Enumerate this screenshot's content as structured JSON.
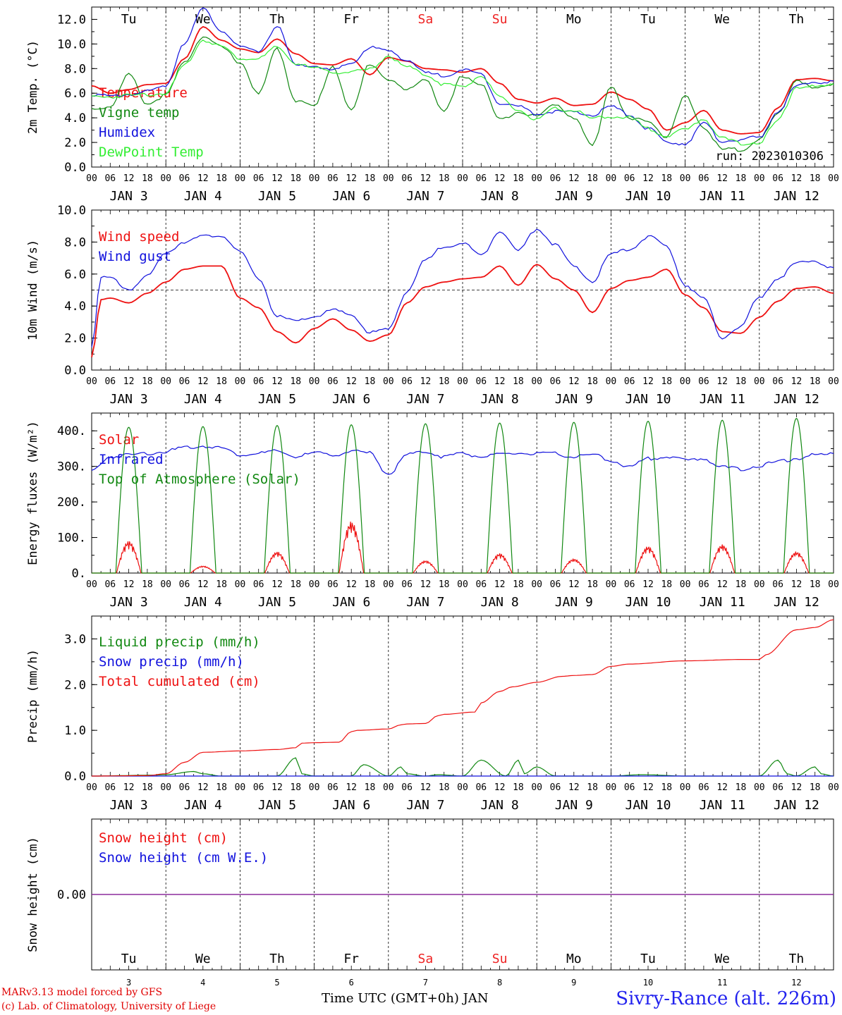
{
  "footer": {
    "credit_line1": "MARv3.13 model forced by GFS",
    "credit_line2": "(c) Lab. of Climatology, University of Liege",
    "time_axis_label": "Time UTC (GMT+0h) JAN",
    "station": "Sivry-Rance (alt. 226m)"
  },
  "run_label": "run: 2023010306",
  "colors": {
    "red": "#ee1111",
    "green": "#118811",
    "blue": "#1111dd",
    "lightgreen": "#33ee33",
    "purple": "#882299",
    "weekend": "#ee2222"
  },
  "day_names": [
    "Tu",
    "We",
    "Th",
    "Fr",
    "Sa",
    "Su",
    "Mo",
    "Tu",
    "We",
    "Th"
  ],
  "weekend_days": [
    "Sa",
    "Su"
  ],
  "dates": [
    "JAN 3",
    "JAN 4",
    "JAN 5",
    "JAN 6",
    "JAN 7",
    "JAN 8",
    "JAN 9",
    "JAN 10",
    "JAN 11",
    "JAN 12"
  ],
  "date_numbers": [
    "3",
    "4",
    "5",
    "6",
    "7",
    "8",
    "9",
    "10",
    "11",
    "12"
  ],
  "hour_labels": [
    "00",
    "06",
    "12",
    "18"
  ],
  "final_hour_label": "00",
  "chart_data": [
    {
      "type": "line",
      "ylabel": "2m Temp. (°C)",
      "ylim": [
        0,
        13.0
      ],
      "yticks": [
        "0.0",
        "2.0",
        "4.0",
        "6.0",
        "8.0",
        "10.0",
        "12.0"
      ],
      "x_unit": "hours since JAN 3 00 UTC",
      "xlim": [
        0,
        240
      ],
      "legend": "top-left",
      "series": [
        {
          "name": "Temperature",
          "color": "red",
          "x": [
            0,
            6,
            12,
            18,
            24,
            30,
            36,
            42,
            48,
            54,
            60,
            66,
            72,
            78,
            84,
            90,
            96,
            102,
            108,
            114,
            120,
            126,
            132,
            138,
            144,
            150,
            156,
            162,
            168,
            174,
            180,
            186,
            192,
            198,
            204,
            210,
            216,
            222,
            228,
            234,
            240
          ],
          "y": [
            6.6,
            6.0,
            6.3,
            6.7,
            6.8,
            8.8,
            11.4,
            10.3,
            9.6,
            9.3,
            10.4,
            9.2,
            8.4,
            8.3,
            8.8,
            7.5,
            8.9,
            8.6,
            8.0,
            7.9,
            7.7,
            8.0,
            6.8,
            5.5,
            5.2,
            5.6,
            5.0,
            5.1,
            6.1,
            5.5,
            4.7,
            3.0,
            3.6,
            4.6,
            3.0,
            2.7,
            2.8,
            4.8,
            7.1,
            7.2,
            7.0
          ]
        },
        {
          "name": "Vigne temp",
          "color": "green",
          "x": [
            0,
            6,
            12,
            18,
            24,
            30,
            36,
            42,
            48,
            54,
            60,
            66,
            72,
            78,
            84,
            90,
            96,
            102,
            108,
            114,
            120,
            126,
            132,
            138,
            144,
            150,
            156,
            162,
            168,
            174,
            180,
            186,
            192,
            198,
            204,
            210,
            216,
            222,
            228,
            234,
            240
          ],
          "y": [
            4.8,
            5.0,
            7.6,
            5.2,
            5.9,
            8.6,
            10.7,
            9.8,
            8.6,
            6.0,
            9.7,
            5.5,
            5.0,
            8.3,
            4.6,
            8.5,
            7.2,
            6.3,
            7.3,
            4.5,
            7.5,
            6.8,
            3.9,
            4.6,
            4.2,
            5.2,
            4.1,
            1.8,
            6.7,
            3.9,
            3.9,
            2.5,
            5.8,
            3.3,
            1.5,
            1.5,
            2.3,
            4.3,
            7.2,
            6.4,
            6.8
          ]
        },
        {
          "name": "Humidex",
          "color": "blue",
          "x": [
            0,
            6,
            12,
            18,
            24,
            30,
            36,
            42,
            48,
            54,
            60,
            66,
            72,
            78,
            84,
            90,
            96,
            102,
            108,
            114,
            120,
            126,
            132,
            138,
            144,
            150,
            156,
            162,
            168,
            174,
            180,
            186,
            192,
            198,
            204,
            210,
            216,
            222,
            228,
            234,
            240
          ],
          "y": [
            6.0,
            5.8,
            6.0,
            6.2,
            6.7,
            10.2,
            12.9,
            11.2,
            9.8,
            9.5,
            11.5,
            8.3,
            8.3,
            7.9,
            8.5,
            9.8,
            9.5,
            8.8,
            7.7,
            7.5,
            8.0,
            7.6,
            5.3,
            5.0,
            4.4,
            4.6,
            4.5,
            4.3,
            5.0,
            4.3,
            3.2,
            2.1,
            2.0,
            3.6,
            2.2,
            2.3,
            2.5,
            4.6,
            6.6,
            7.0,
            7.0
          ]
        },
        {
          "name": "DewPoint Temp",
          "color": "lightgreen",
          "x": [
            0,
            6,
            12,
            18,
            24,
            30,
            36,
            42,
            48,
            54,
            60,
            66,
            72,
            78,
            84,
            90,
            96,
            102,
            108,
            114,
            120,
            126,
            132,
            138,
            144,
            150,
            156,
            162,
            168,
            174,
            180,
            186,
            192,
            198,
            204,
            210,
            216,
            222,
            228,
            234,
            240
          ],
          "y": [
            5.8,
            5.8,
            5.9,
            6.0,
            6.1,
            8.3,
            10.4,
            9.9,
            8.9,
            8.9,
            9.8,
            8.5,
            8.1,
            7.8,
            7.8,
            8.0,
            9.1,
            8.2,
            7.6,
            6.8,
            6.6,
            7.5,
            5.7,
            4.7,
            3.9,
            4.8,
            4.7,
            4.0,
            4.2,
            4.1,
            3.2,
            2.6,
            3.1,
            4.0,
            2.4,
            2.0,
            2.1,
            3.8,
            6.6,
            6.6,
            6.7
          ]
        }
      ]
    },
    {
      "type": "line",
      "ylabel": "10m Wind (m/s)",
      "ylim": [
        0,
        10.0
      ],
      "yticks": [
        "0.0",
        "2.0",
        "4.0",
        "6.0",
        "8.0",
        "10.0"
      ],
      "reference_line": 5.0,
      "x_unit": "hours since JAN 3 00 UTC",
      "xlim": [
        0,
        240
      ],
      "legend": "top-left",
      "series": [
        {
          "name": "Wind speed",
          "color": "red",
          "x": [
            0,
            3,
            6,
            12,
            18,
            24,
            30,
            36,
            42,
            48,
            54,
            60,
            66,
            72,
            78,
            84,
            90,
            96,
            102,
            108,
            114,
            120,
            126,
            132,
            138,
            144,
            150,
            156,
            162,
            168,
            174,
            180,
            186,
            192,
            198,
            204,
            210,
            216,
            222,
            228,
            234,
            240
          ],
          "y": [
            0.8,
            4.4,
            4.5,
            4.2,
            4.8,
            5.5,
            6.3,
            6.5,
            6.5,
            4.5,
            3.9,
            2.4,
            1.7,
            2.6,
            3.2,
            2.5,
            1.8,
            2.2,
            4.2,
            5.2,
            5.5,
            5.7,
            5.8,
            6.5,
            5.3,
            6.6,
            5.7,
            5.0,
            3.6,
            5.1,
            5.6,
            5.8,
            6.3,
            4.7,
            3.9,
            2.4,
            2.3,
            3.3,
            4.3,
            5.1,
            5.2,
            4.8
          ]
        },
        {
          "name": "Wind gust",
          "color": "blue",
          "x": [
            0,
            3,
            6,
            12,
            18,
            24,
            30,
            36,
            42,
            48,
            54,
            60,
            66,
            72,
            78,
            84,
            90,
            96,
            102,
            108,
            114,
            120,
            126,
            132,
            138,
            144,
            150,
            156,
            162,
            168,
            174,
            180,
            186,
            192,
            198,
            204,
            210,
            216,
            222,
            228,
            234,
            240
          ],
          "y": [
            1.6,
            5.8,
            5.8,
            5.1,
            5.9,
            7.4,
            8.1,
            8.4,
            8.5,
            7.4,
            5.8,
            3.4,
            3.1,
            3.4,
            3.8,
            3.5,
            2.4,
            2.6,
            5.0,
            6.9,
            7.8,
            8.0,
            7.2,
            8.8,
            7.5,
            8.9,
            7.9,
            6.5,
            5.6,
            7.3,
            7.6,
            8.4,
            7.8,
            5.4,
            4.5,
            2.1,
            2.8,
            4.6,
            5.8,
            6.7,
            6.9,
            6.4
          ]
        }
      ]
    },
    {
      "type": "line",
      "ylabel": "Energy fluxes (W/m²)",
      "ylim": [
        0,
        450
      ],
      "yticks": [
        "0.",
        "100.",
        "200.",
        "300.",
        "400."
      ],
      "x_unit": "hours since JAN 3 00 UTC",
      "xlim": [
        0,
        240
      ],
      "legend": "top-left",
      "series": [
        {
          "name": "Solar",
          "color": "red",
          "daily_peak_hour": 12,
          "daily_peaks": [
            90,
            20,
            60,
            145,
            35,
            55,
            40,
            75,
            80,
            60
          ]
        },
        {
          "name": "Infrared",
          "color": "blue",
          "x": [
            0,
            6,
            12,
            18,
            24,
            30,
            36,
            42,
            48,
            54,
            60,
            66,
            72,
            78,
            84,
            90,
            96,
            102,
            108,
            114,
            120,
            126,
            132,
            138,
            144,
            150,
            156,
            162,
            168,
            174,
            180,
            186,
            192,
            198,
            204,
            210,
            216,
            222,
            228,
            234,
            240
          ],
          "y": [
            290,
            330,
            335,
            340,
            345,
            355,
            360,
            355,
            335,
            340,
            345,
            330,
            340,
            335,
            345,
            340,
            280,
            335,
            345,
            330,
            340,
            330,
            335,
            340,
            338,
            338,
            330,
            335,
            320,
            300,
            325,
            330,
            320,
            325,
            300,
            295,
            305,
            315,
            325,
            335,
            336
          ]
        },
        {
          "name": "Top of Atmosphere (Solar)",
          "color": "green",
          "daily_peak_hour": 12,
          "daily_peaks": [
            410,
            412,
            415,
            417,
            420,
            422,
            424,
            427,
            430,
            435
          ]
        }
      ]
    },
    {
      "type": "line",
      "ylabel": "Precip (mm/h)",
      "ylim": [
        0,
        3.5
      ],
      "yticks": [
        "0.0",
        "1.0",
        "2.0",
        "3.0"
      ],
      "x_unit": "hours since JAN 3 00 UTC",
      "xlim": [
        0,
        240
      ],
      "legend": "top-left",
      "series": [
        {
          "name": "Liquid precip (mm/h)",
          "color": "green",
          "x": [
            0,
            20,
            24,
            33,
            36,
            42,
            48,
            60,
            66,
            68,
            72,
            84,
            88,
            96,
            100,
            102,
            108,
            112,
            120,
            126,
            134,
            138,
            140,
            144,
            150,
            168,
            178,
            192,
            210,
            216,
            222,
            225,
            228,
            234,
            236,
            240
          ],
          "y": [
            0,
            0.02,
            0.03,
            0.1,
            0.05,
            0,
            0,
            0,
            0.4,
            0.05,
            0,
            0,
            0.25,
            0,
            0.2,
            0.05,
            0,
            0.03,
            0,
            0.35,
            0,
            0.35,
            0.05,
            0.2,
            0,
            0,
            0.03,
            0,
            0,
            0,
            0.35,
            0.05,
            0,
            0.2,
            0.05,
            0
          ]
        },
        {
          "name": "Snow precip (mm/h)",
          "color": "blue",
          "x": [
            0,
            240
          ],
          "y": [
            0,
            0
          ]
        },
        {
          "name": "Total cumulated (cm)",
          "color": "red",
          "x": [
            0,
            18,
            24,
            30,
            36,
            48,
            60,
            66,
            68,
            72,
            80,
            84,
            86,
            96,
            100,
            102,
            108,
            112,
            114,
            124,
            126,
            132,
            136,
            144,
            152,
            156,
            162,
            168,
            174,
            192,
            210,
            216,
            218,
            228,
            234,
            240
          ],
          "y": [
            0,
            0.01,
            0.05,
            0.3,
            0.52,
            0.55,
            0.58,
            0.62,
            0.72,
            0.73,
            0.74,
            0.97,
            1.0,
            1.03,
            1.12,
            1.14,
            1.15,
            1.32,
            1.35,
            1.4,
            1.6,
            1.85,
            1.95,
            2.05,
            2.18,
            2.2,
            2.22,
            2.4,
            2.45,
            2.52,
            2.55,
            2.55,
            2.65,
            3.2,
            3.25,
            3.42
          ]
        }
      ]
    },
    {
      "type": "line",
      "ylabel": "Snow height (cm)",
      "yticks": [
        "0.00"
      ],
      "x_unit": "hours since JAN 3 00 UTC",
      "xlim": [
        0,
        240
      ],
      "legend": "top-left",
      "series": [
        {
          "name": "Snow height (cm)",
          "color": "red",
          "x": [
            0,
            240
          ],
          "y": [
            0,
            0
          ]
        },
        {
          "name": "Snow height (cm W.E.)",
          "color": "blue",
          "x": [
            0,
            240
          ],
          "y": [
            0,
            0
          ]
        }
      ]
    }
  ]
}
